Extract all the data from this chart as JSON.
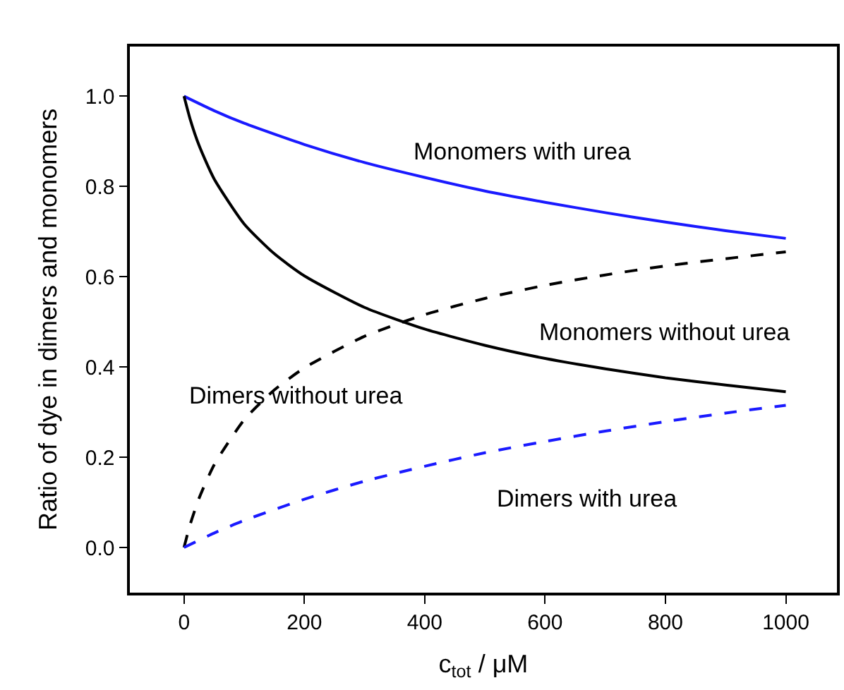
{
  "chart_data": {
    "type": "line",
    "xlabel": "c$_{tot}$ / μM",
    "ylabel": "Ratio of dye in dimers and monomers",
    "xlim": [
      -90,
      1085
    ],
    "ylim": [
      -0.1,
      1.11
    ],
    "xticks": [
      0,
      200,
      400,
      600,
      800,
      1000
    ],
    "yticks": [
      {
        "value": 0,
        "label": "0.0"
      },
      {
        "value": 0.2,
        "label": "0.2"
      },
      {
        "value": 0.4,
        "label": "0.4"
      },
      {
        "value": 0.6,
        "label": "0.6"
      },
      {
        "value": 0.8,
        "label": "0.8"
      },
      {
        "value": 1,
        "label": "1.0"
      }
    ],
    "marker": "none",
    "series": [
      {
        "color": "#1a1aff",
        "line_style": "solid",
        "x": [
          0,
          50,
          100,
          200,
          300,
          400,
          500,
          600,
          700,
          800,
          900,
          1000
        ],
        "values": [
          1.0,
          0.968,
          0.94,
          0.893,
          0.853,
          0.82,
          0.79,
          0.765,
          0.742,
          0.721,
          0.702,
          0.685
        ]
      },
      {
        "color": "#000000",
        "line_style": "solid",
        "x": [
          0,
          10,
          25,
          50,
          100,
          150,
          200,
          300,
          400,
          500,
          600,
          700,
          800,
          900,
          1000
        ],
        "values": [
          1.0,
          0.95,
          0.891,
          0.817,
          0.717,
          0.651,
          0.602,
          0.532,
          0.484,
          0.448,
          0.419,
          0.396,
          0.376,
          0.36,
          0.345
        ]
      },
      {
        "color": "#000000",
        "line_style": "dashed",
        "x": [
          0,
          10,
          25,
          50,
          100,
          150,
          200,
          300,
          400,
          500,
          600,
          700,
          800,
          900,
          1000
        ],
        "values": [
          0.0,
          0.05,
          0.109,
          0.183,
          0.283,
          0.349,
          0.398,
          0.468,
          0.516,
          0.552,
          0.581,
          0.604,
          0.624,
          0.64,
          0.655
        ]
      },
      {
        "color": "#1a1aff",
        "line_style": "dashed",
        "x": [
          0,
          50,
          100,
          200,
          300,
          400,
          500,
          600,
          700,
          800,
          900,
          1000
        ],
        "values": [
          0.0,
          0.032,
          0.06,
          0.107,
          0.147,
          0.18,
          0.21,
          0.235,
          0.258,
          0.279,
          0.298,
          0.315
        ]
      }
    ],
    "annotations": [
      "Monomers with urea",
      "Monomers without urea",
      "Dimers without urea",
      "Dimers with urea"
    ]
  }
}
